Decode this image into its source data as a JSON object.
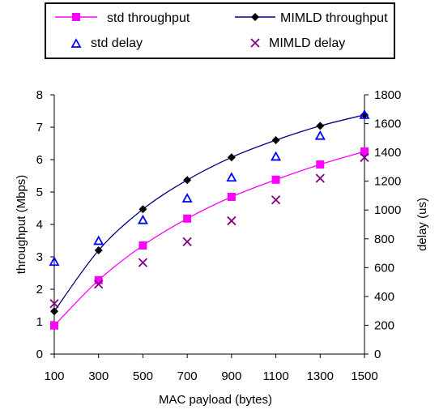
{
  "chart_data": {
    "type": "line",
    "x": [
      100,
      300,
      500,
      700,
      900,
      1100,
      1300,
      1500
    ],
    "xlabel": "MAC payload (bytes)",
    "ylabel_left": "throughput (Mbps)",
    "ylabel_right": "delay (us)",
    "xlim": [
      100,
      1500
    ],
    "ylim_left": [
      0,
      8
    ],
    "ylim_right": [
      0,
      1800
    ],
    "x_ticks": [
      "100",
      "300",
      "500",
      "700",
      "900",
      "1100",
      "1300",
      "1500"
    ],
    "y_ticks_left": [
      "0",
      "1",
      "2",
      "3",
      "4",
      "5",
      "6",
      "7",
      "8"
    ],
    "y_ticks_right": [
      "0",
      "200",
      "400",
      "600",
      "800",
      "1000",
      "1200",
      "1400",
      "1600",
      "1800"
    ],
    "grid": false,
    "legend_position": "top",
    "series": [
      {
        "name": "std throughput",
        "axis": "left",
        "style": "line-square",
        "color": "#ff00ff",
        "values": [
          0.88,
          2.28,
          3.35,
          4.18,
          4.85,
          5.38,
          5.85,
          6.25
        ]
      },
      {
        "name": "MIMLD throughput",
        "axis": "left",
        "style": "line-diamond",
        "color": "#000080",
        "values": [
          1.32,
          3.2,
          4.47,
          5.37,
          6.07,
          6.6,
          7.04,
          7.38
        ]
      },
      {
        "name": "std delay",
        "axis": "right",
        "style": "triangle",
        "color": "#0000ff",
        "values": [
          640,
          785,
          930,
          1080,
          1225,
          1370,
          1515,
          1660
        ]
      },
      {
        "name": "MIMLD delay",
        "axis": "right",
        "style": "cross",
        "color": "#800080",
        "values": [
          350,
          485,
          635,
          780,
          925,
          1070,
          1220,
          1365
        ]
      }
    ]
  }
}
